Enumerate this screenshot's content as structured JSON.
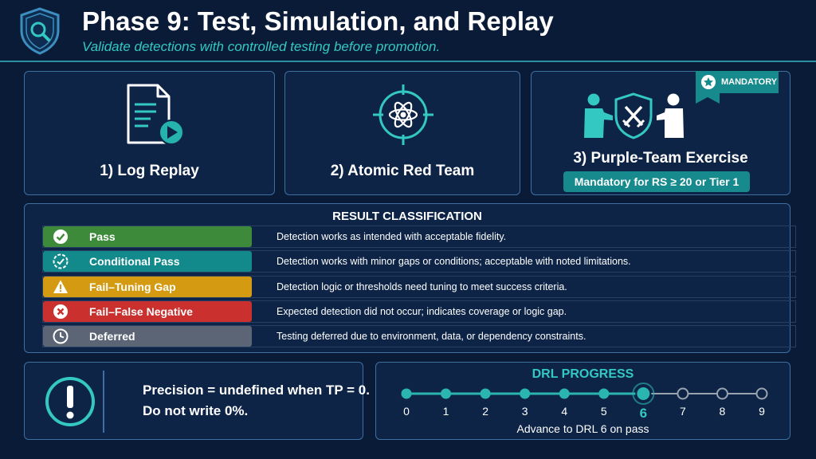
{
  "header": {
    "title": "Phase 9: Test, Simulation, and Replay",
    "subtitle": "Validate detections with controlled testing before promotion.",
    "logo_icon": "shield-search-icon"
  },
  "methods": [
    {
      "label": "1) Log Replay",
      "icon": "document-play-icon"
    },
    {
      "label": "2) Atomic Red Team",
      "icon": "atom-target-icon"
    },
    {
      "label": "3) Purple-Team Exercise",
      "icon": "purple-team-shield-icon",
      "ribbon": "MANDATORY",
      "requirement": "Mandatory for RS ≥ 20 or Tier 1"
    }
  ],
  "results": {
    "title": "RESULT CLASSIFICATION",
    "rows": [
      {
        "label": "Pass",
        "description": "Detection works as intended with acceptable fidelity.",
        "color": "#3d8b3a",
        "icon": "check-circle-icon"
      },
      {
        "label": "Conditional Pass",
        "description": "Detection works with minor gaps or conditions; acceptable with noted limitations.",
        "color": "#128a8c",
        "icon": "conditional-check-icon"
      },
      {
        "label": "Fail–Tuning Gap",
        "description": "Detection logic or thresholds need tuning to meet success criteria.",
        "color": "#d49a12",
        "icon": "warning-triangle-icon"
      },
      {
        "label": "Fail–False Negative",
        "description": "Expected detection did not occur; indicates coverage or logic gap.",
        "color": "#c9302e",
        "icon": "x-circle-icon"
      },
      {
        "label": "Deferred",
        "description": "Testing deferred due to environment, data, or dependency constraints.",
        "color": "#5b6575",
        "icon": "clock-icon"
      }
    ]
  },
  "note": {
    "line1": "Precision = undefined when TP = 0.",
    "line2": "Do not write 0%.",
    "icon": "exclamation-circle-icon"
  },
  "drl": {
    "title": "DRL PROGRESS",
    "levels": [
      "0",
      "1",
      "2",
      "3",
      "4",
      "5",
      "6",
      "7",
      "8",
      "9"
    ],
    "current": 6,
    "caption": "Advance to DRL 6 on pass",
    "accent": "#2bb5b0",
    "inactive": "#9aa4b0"
  }
}
